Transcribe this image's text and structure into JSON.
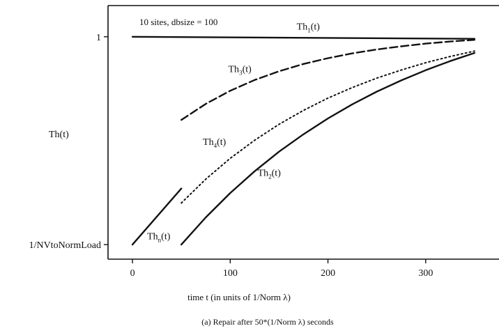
{
  "chart_data": {
    "type": "line",
    "annotation": "10 sites, dbsize = 100",
    "ylabel": "Th(t)",
    "xlabel": "time t (in units of 1/Norm λ)",
    "caption": "(a)  Repair after 50*(1/Norm λ) seconds",
    "y_ticks": [
      {
        "label": "1",
        "value": 1.0
      },
      {
        "label": "1/NVtoNormLoad",
        "value": 0.0
      }
    ],
    "x_ticks": [
      "0",
      "100",
      "200",
      "300"
    ],
    "xlim": [
      -25,
      375
    ],
    "ylim": [
      -0.07,
      1.15
    ],
    "grid": false,
    "series": [
      {
        "name": "Th",
        "sub": "1",
        "style": "solid",
        "x": [
          0,
          350
        ],
        "y": [
          1.0,
          0.99
        ]
      },
      {
        "name": "Th",
        "sub": "2",
        "style": "solid",
        "x": [
          50,
          75,
          100,
          125,
          150,
          175,
          200,
          225,
          250,
          275,
          300,
          325,
          350
        ],
        "y": [
          0.0,
          0.131,
          0.248,
          0.353,
          0.447,
          0.531,
          0.607,
          0.675,
          0.736,
          0.79,
          0.839,
          0.883,
          0.922
        ]
      },
      {
        "name": "Th",
        "sub": "3",
        "style": "dashed",
        "x": [
          50,
          75,
          100,
          125,
          150,
          175,
          200,
          225,
          250,
          275,
          300,
          325,
          350
        ],
        "y": [
          0.6,
          0.677,
          0.74,
          0.792,
          0.834,
          0.869,
          0.897,
          0.92,
          0.939,
          0.954,
          0.967,
          0.977,
          0.985
        ]
      },
      {
        "name": "Th",
        "sub": "4",
        "style": "dotted",
        "x": [
          50,
          75,
          100,
          125,
          150,
          175,
          200,
          225,
          250,
          275,
          300,
          325,
          350
        ],
        "y": [
          0.2,
          0.315,
          0.415,
          0.502,
          0.579,
          0.646,
          0.705,
          0.756,
          0.801,
          0.84,
          0.875,
          0.905,
          0.931
        ]
      },
      {
        "name": "Th",
        "sub": "n",
        "style": "solid",
        "x": [
          0,
          50
        ],
        "y": [
          0.0,
          0.27
        ]
      }
    ],
    "series_labels": [
      {
        "series": 0,
        "x": 168,
        "y": 1.035
      },
      {
        "series": 1,
        "x": 128,
        "y": 0.33
      },
      {
        "series": 2,
        "x": 98,
        "y": 0.83
      },
      {
        "series": 3,
        "x": 72,
        "y": 0.48
      },
      {
        "series": 4,
        "x": 15,
        "y": 0.025
      }
    ]
  }
}
